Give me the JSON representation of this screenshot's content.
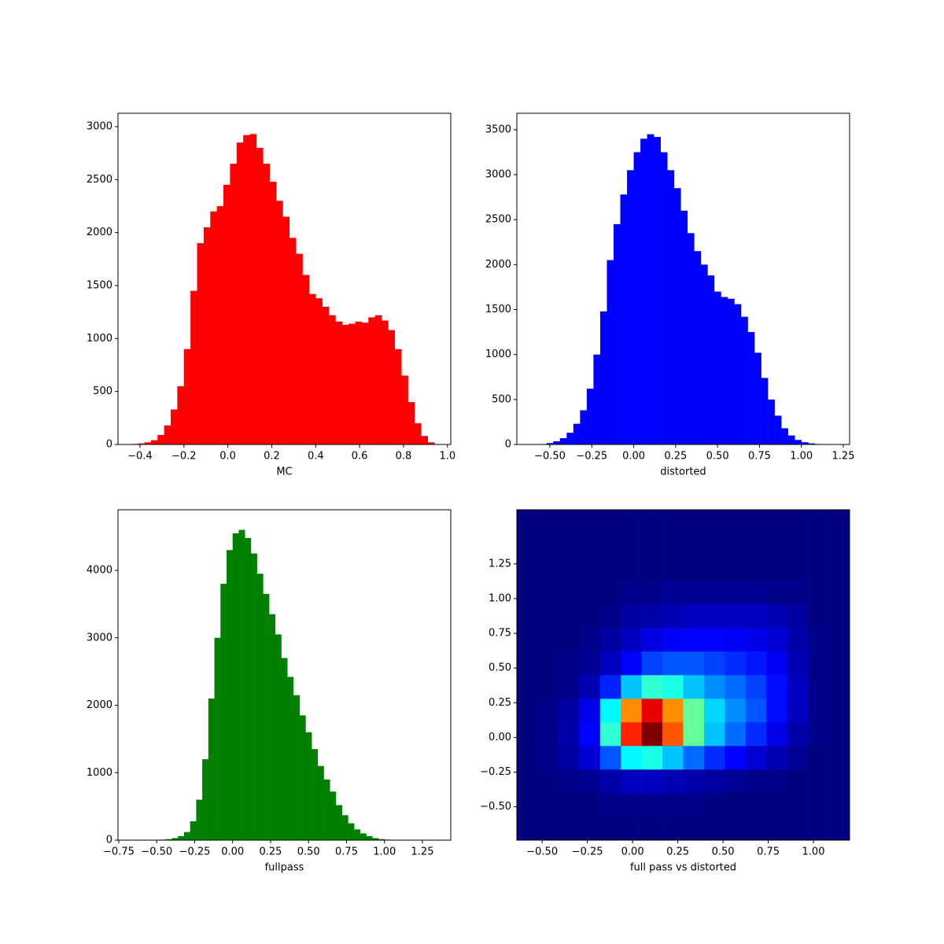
{
  "chart_data": [
    {
      "type": "histogram",
      "xlabel": "MC",
      "color": "#ff0000",
      "bins": [
        -0.44,
        -0.41,
        -0.38,
        -0.35,
        -0.32,
        -0.29,
        -0.26,
        -0.23,
        -0.2,
        -0.17,
        -0.14,
        -0.11,
        -0.08,
        -0.05,
        -0.02,
        0.01,
        0.04,
        0.07,
        0.1,
        0.13,
        0.16,
        0.19,
        0.22,
        0.25,
        0.28,
        0.31,
        0.34,
        0.37,
        0.4,
        0.43,
        0.46,
        0.49,
        0.52,
        0.55,
        0.58,
        0.61,
        0.64,
        0.67,
        0.7,
        0.73,
        0.76,
        0.79,
        0.82,
        0.85,
        0.88,
        0.91,
        0.94
      ],
      "values": [
        5,
        10,
        20,
        40,
        90,
        180,
        330,
        550,
        900,
        1450,
        1900,
        2050,
        2200,
        2250,
        2450,
        2650,
        2850,
        2920,
        2930,
        2800,
        2650,
        2480,
        2300,
        2150,
        1950,
        1800,
        1600,
        1420,
        1380,
        1300,
        1220,
        1160,
        1130,
        1140,
        1160,
        1150,
        1200,
        1220,
        1170,
        1080,
        900,
        650,
        400,
        200,
        80,
        20
      ],
      "xlim": [
        -0.5,
        1.015
      ],
      "ylim": [
        0,
        3126
      ],
      "xticks": [
        {
          "value": -0.4,
          "label": "−0.4"
        },
        {
          "value": -0.2,
          "label": "−0.2"
        },
        {
          "value": 0,
          "label": "0.0"
        },
        0.2,
        0.4,
        0.6,
        0.8,
        {
          "value": 1,
          "label": "1.0"
        }
      ],
      "yticks": [
        0,
        500,
        1000,
        1500,
        2000,
        2500,
        3000
      ]
    },
    {
      "type": "histogram",
      "xlabel": "distorted",
      "color": "#0000ff",
      "bins": [
        -0.6,
        -0.56,
        -0.52,
        -0.48,
        -0.44,
        -0.4,
        -0.36,
        -0.32,
        -0.28,
        -0.24,
        -0.2,
        -0.16,
        -0.12,
        -0.08,
        -0.04,
        0,
        0.04,
        0.08,
        0.12,
        0.16,
        0.2,
        0.24,
        0.28,
        0.32,
        0.36,
        0.4,
        0.44,
        0.48,
        0.52,
        0.56,
        0.6,
        0.64,
        0.68,
        0.72,
        0.76,
        0.8,
        0.84,
        0.88,
        0.92,
        0.96,
        1,
        1.04,
        1.08,
        1.12,
        1.16,
        1.2
      ],
      "values": [
        2,
        5,
        15,
        35,
        70,
        130,
        230,
        380,
        620,
        1000,
        1480,
        2050,
        2450,
        2780,
        3050,
        3250,
        3400,
        3450,
        3420,
        3250,
        3050,
        2850,
        2600,
        2350,
        2150,
        2000,
        1880,
        1700,
        1640,
        1620,
        1560,
        1420,
        1250,
        1020,
        740,
        500,
        320,
        180,
        100,
        50,
        25,
        12,
        5,
        2,
        1
      ],
      "xlim": [
        -0.697,
        1.2875
      ],
      "ylim": [
        0,
        3683
      ],
      "xticks": [
        {
          "value": -0.5,
          "label": "−0.50"
        },
        {
          "value": -0.25,
          "label": "−0.25"
        },
        {
          "value": 0,
          "label": "0.00"
        },
        0.25,
        {
          "value": 0.5,
          "label": "0.50"
        },
        0.75,
        {
          "value": 1,
          "label": "1.00"
        },
        1.25
      ],
      "yticks": [
        0,
        500,
        1000,
        1500,
        2000,
        2500,
        3000,
        3500
      ]
    },
    {
      "type": "histogram",
      "xlabel": "fullpass",
      "color": "#008000",
      "bins": [
        -0.6,
        -0.56,
        -0.52,
        -0.48,
        -0.44,
        -0.4,
        -0.36,
        -0.32,
        -0.28,
        -0.24,
        -0.2,
        -0.16,
        -0.12,
        -0.08,
        -0.04,
        0,
        0.04,
        0.08,
        0.12,
        0.16,
        0.2,
        0.24,
        0.28,
        0.32,
        0.36,
        0.4,
        0.44,
        0.48,
        0.52,
        0.56,
        0.6,
        0.64,
        0.68,
        0.72,
        0.76,
        0.8,
        0.84,
        0.88,
        0.92,
        0.96,
        1,
        1.04,
        1.08,
        1.12,
        1.16,
        1.2
      ],
      "values": [
        1,
        2,
        4,
        8,
        15,
        30,
        60,
        120,
        280,
        600,
        1200,
        2100,
        3000,
        3800,
        4300,
        4550,
        4600,
        4480,
        4250,
        3950,
        3650,
        3350,
        3050,
        2700,
        2420,
        2150,
        1850,
        1600,
        1350,
        1100,
        900,
        720,
        520,
        370,
        250,
        160,
        100,
        60,
        30,
        15,
        8,
        4,
        2,
        1,
        0
      ],
      "xlim": [
        -0.755,
        1.4365
      ],
      "ylim": [
        0,
        4898
      ],
      "xticks": [
        {
          "value": -0.75,
          "label": "−0.75"
        },
        {
          "value": -0.5,
          "label": "−0.50"
        },
        {
          "value": -0.25,
          "label": "−0.25"
        },
        {
          "value": 0,
          "label": "0.00"
        },
        0.25,
        {
          "value": 0.5,
          "label": "0.50"
        },
        0.75,
        {
          "value": 1,
          "label": "1.00"
        },
        1.25
      ],
      "yticks": [
        0,
        1000,
        2000,
        3000,
        4000
      ]
    },
    {
      "type": "heatmap",
      "xlabel": "full pass vs distorted",
      "cmap": "jet",
      "xbins": [
        -0.64,
        -0.525,
        -0.41,
        -0.295,
        -0.18,
        -0.065,
        0.05,
        0.165,
        0.28,
        0.395,
        0.51,
        0.625,
        0.74,
        0.855,
        0.97,
        1.085,
        1.2
      ],
      "ybins": [
        -0.74,
        -0.57,
        -0.4,
        -0.23,
        -0.06,
        0.11,
        0.28,
        0.45,
        0.62,
        0.79,
        0.96,
        1.13,
        1.3,
        1.47,
        1.64
      ],
      "z": [
        [
          0,
          0,
          0,
          0,
          0,
          0,
          0,
          0,
          0,
          0,
          0,
          0,
          0,
          0,
          0,
          0
        ],
        [
          0,
          0,
          0,
          0,
          1,
          1,
          1,
          1,
          1,
          0,
          0,
          0,
          0,
          0,
          0,
          0
        ],
        [
          0,
          0,
          1,
          2,
          4,
          6,
          6,
          5,
          4,
          3,
          2,
          1,
          1,
          0,
          0,
          0
        ],
        [
          0,
          1,
          3,
          8,
          20,
          35,
          38,
          30,
          22,
          16,
          12,
          8,
          5,
          2,
          0,
          0
        ],
        [
          0,
          1,
          4,
          12,
          40,
          80,
          95,
          75,
          45,
          30,
          22,
          16,
          10,
          4,
          1,
          0
        ],
        [
          0,
          1,
          3,
          10,
          35,
          70,
          85,
          70,
          45,
          32,
          25,
          20,
          13,
          6,
          1,
          0
        ],
        [
          0,
          0,
          1,
          5,
          15,
          30,
          40,
          38,
          30,
          25,
          22,
          18,
          13,
          6,
          1,
          0
        ],
        [
          0,
          0,
          1,
          2,
          6,
          12,
          18,
          20,
          20,
          18,
          16,
          14,
          11,
          5,
          1,
          0
        ],
        [
          0,
          0,
          0,
          1,
          3,
          6,
          9,
          11,
          12,
          12,
          11,
          10,
          8,
          4,
          1,
          0
        ],
        [
          0,
          0,
          0,
          0,
          1,
          3,
          4,
          5,
          6,
          6,
          6,
          6,
          5,
          3,
          0,
          0
        ],
        [
          0,
          0,
          0,
          0,
          0,
          1,
          1,
          2,
          2,
          2,
          2,
          2,
          1,
          1,
          0,
          0
        ],
        [
          0,
          0,
          0,
          0,
          0,
          0,
          0,
          0,
          0,
          0,
          0,
          0,
          0,
          0,
          0,
          0
        ],
        [
          0,
          0,
          0,
          0,
          0,
          0,
          0,
          0,
          0,
          0,
          0,
          0,
          0,
          0,
          0,
          0
        ],
        [
          0,
          0,
          0,
          0,
          0,
          0,
          0,
          0,
          0,
          0,
          0,
          0,
          0,
          0,
          0,
          0
        ]
      ],
      "xlim": [
        -0.64,
        1.2
      ],
      "ylim": [
        -0.74,
        1.64
      ],
      "xticks": [
        {
          "value": -0.5,
          "label": "−0.50"
        },
        {
          "value": -0.25,
          "label": "−0.25"
        },
        {
          "value": 0,
          "label": "0.00"
        },
        0.25,
        {
          "value": 0.5,
          "label": "0.50"
        },
        0.75,
        {
          "value": 1,
          "label": "1.00"
        }
      ],
      "yticks": [
        {
          "value": -0.5,
          "label": "−0.50"
        },
        {
          "value": -0.25,
          "label": "−0.25"
        },
        {
          "value": 0,
          "label": "0.00"
        },
        0.25,
        {
          "value": 0.5,
          "label": "0.50"
        },
        0.75,
        {
          "value": 1,
          "label": "1.00"
        },
        1.25
      ]
    }
  ]
}
